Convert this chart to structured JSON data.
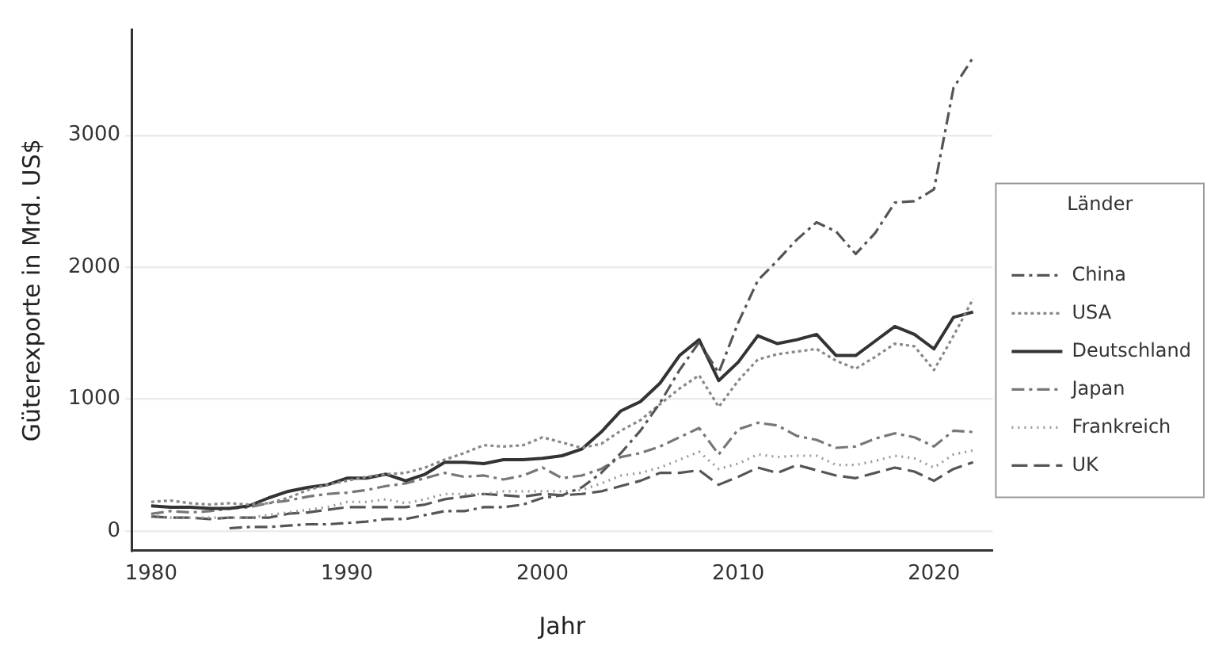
{
  "chart_data": {
    "type": "line",
    "xlabel": "Jahr",
    "ylabel": "Güterexporte in Mrd. US$",
    "legend_title": "Länder",
    "legend": "right",
    "grid": "y",
    "marker": "none",
    "x": [
      1980,
      1981,
      1982,
      1983,
      1984,
      1985,
      1986,
      1987,
      1988,
      1989,
      1990,
      1991,
      1992,
      1993,
      1994,
      1995,
      1996,
      1997,
      1998,
      1999,
      2000,
      2001,
      2002,
      2003,
      2004,
      2005,
      2006,
      2007,
      2008,
      2009,
      2010,
      2011,
      2012,
      2013,
      2014,
      2015,
      2016,
      2017,
      2018,
      2019,
      2020,
      2021,
      2022
    ],
    "xlim": [
      1979,
      2023
    ],
    "xticks": [
      1980,
      1990,
      2000,
      2010,
      2020
    ],
    "ylim": [
      -150,
      3800
    ],
    "yticks": [
      0,
      1000,
      2000,
      3000
    ],
    "series": [
      {
        "name": "China",
        "color": "#555555",
        "line_style": "dashed",
        "values": [
          null,
          null,
          null,
          null,
          20,
          30,
          30,
          40,
          50,
          50,
          60,
          70,
          90,
          90,
          120,
          150,
          150,
          180,
          180,
          200,
          250,
          270,
          330,
          440,
          590,
          760,
          970,
          1220,
          1430,
          1200,
          1580,
          1900,
          2050,
          2210,
          2340,
          2270,
          2100,
          2260,
          2490,
          2500,
          2590,
          3360,
          3590
        ]
      },
      {
        "name": "USA",
        "color": "#888888",
        "line_style": "dotted",
        "values": [
          220,
          230,
          210,
          200,
          210,
          200,
          210,
          250,
          310,
          350,
          380,
          410,
          430,
          440,
          480,
          540,
          590,
          650,
          640,
          650,
          710,
          670,
          630,
          660,
          760,
          840,
          960,
          1080,
          1180,
          940,
          1140,
          1300,
          1340,
          1360,
          1380,
          1290,
          1230,
          1320,
          1420,
          1400,
          1220,
          1480,
          1760
        ]
      },
      {
        "name": "Deutschland",
        "color": "#333333",
        "line_style": "solid",
        "values": [
          190,
          180,
          180,
          170,
          170,
          190,
          250,
          300,
          330,
          350,
          400,
          400,
          430,
          380,
          430,
          520,
          520,
          510,
          540,
          540,
          550,
          570,
          620,
          750,
          910,
          980,
          1120,
          1330,
          1450,
          1140,
          1280,
          1480,
          1420,
          1450,
          1490,
          1330,
          1330,
          1440,
          1550,
          1490,
          1380,
          1620,
          1660
        ]
      },
      {
        "name": "Japan",
        "color": "#777777",
        "line_style": "dashed",
        "values": [
          130,
          150,
          140,
          150,
          170,
          180,
          210,
          230,
          260,
          280,
          290,
          310,
          340,
          360,
          400,
          440,
          410,
          420,
          390,
          420,
          480,
          400,
          420,
          470,
          560,
          590,
          640,
          710,
          780,
          580,
          770,
          820,
          800,
          720,
          690,
          630,
          640,
          700,
          740,
          710,
          640,
          760,
          750
        ]
      },
      {
        "name": "Frankreich",
        "color": "#999999",
        "line_style": "dotted",
        "values": [
          120,
          100,
          100,
          100,
          100,
          100,
          120,
          140,
          160,
          180,
          220,
          220,
          240,
          210,
          240,
          280,
          280,
          280,
          300,
          300,
          300,
          300,
          310,
          360,
          420,
          440,
          480,
          540,
          600,
          470,
          510,
          580,
          560,
          570,
          570,
          500,
          500,
          530,
          570,
          550,
          480,
          580,
          610
        ]
      },
      {
        "name": "UK",
        "color": "#555555",
        "line_style": "dashed",
        "values": [
          110,
          100,
          100,
          90,
          100,
          100,
          100,
          130,
          140,
          160,
          180,
          180,
          180,
          180,
          200,
          240,
          260,
          280,
          270,
          260,
          280,
          270,
          280,
          300,
          340,
          380,
          440,
          440,
          460,
          350,
          410,
          480,
          440,
          500,
          460,
          420,
          400,
          440,
          480,
          450,
          380,
          470,
          520
        ]
      }
    ]
  }
}
